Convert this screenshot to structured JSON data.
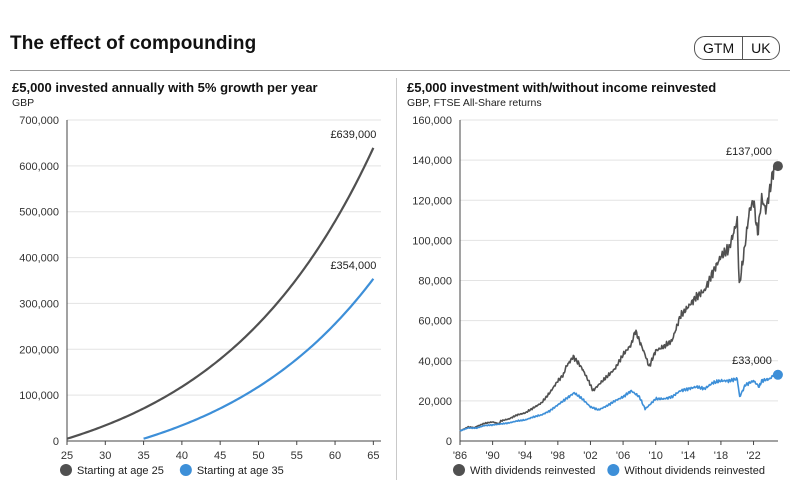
{
  "header": {
    "title": "The effect of compounding",
    "badge": [
      "GTM",
      "UK"
    ]
  },
  "colors": {
    "dark": "#505050",
    "blue": "#3d8fd8",
    "grid": "#e3e3e3",
    "axis": "#444444"
  },
  "chart_data": [
    {
      "type": "line",
      "title": "£5,000 invested annually with 5% growth per year",
      "subtitle": "GBP",
      "xlim": [
        25,
        66
      ],
      "ylim": [
        0,
        700000
      ],
      "xticks": [
        "25",
        "30",
        "35",
        "40",
        "45",
        "50",
        "55",
        "60",
        "65"
      ],
      "yticks": [
        "0",
        "100,000",
        "200,000",
        "300,000",
        "400,000",
        "500,000",
        "600,000",
        "700,000"
      ],
      "series": [
        {
          "name": "Starting at age 25",
          "color_key": "dark",
          "start_age": 25,
          "end_age": 65,
          "annual": 5000,
          "rate": 0.05,
          "final_label": "£639,000"
        },
        {
          "name": "Starting at age 35",
          "color_key": "blue",
          "start_age": 35,
          "end_age": 65,
          "annual": 5000,
          "rate": 0.05,
          "final_label": "£354,000"
        }
      ],
      "legend": [
        "Starting at age 25",
        "Starting at age 35"
      ]
    },
    {
      "type": "line",
      "title": "£5,000 investment with/without income reinvested",
      "subtitle": "GBP, FTSE All-Share returns",
      "xlim": [
        1986,
        2025
      ],
      "ylim": [
        0,
        160000
      ],
      "xtick_labels": [
        "'86",
        "'90",
        "'94",
        "'98",
        "'02",
        "'06",
        "'10",
        "'14",
        "'18",
        "'22"
      ],
      "xtick_years": [
        1986,
        1990,
        1994,
        1998,
        2002,
        2006,
        2010,
        2014,
        2018,
        2022
      ],
      "yticks": [
        "0",
        "20,000",
        "40,000",
        "60,000",
        "80,000",
        "100,000",
        "120,000",
        "140,000",
        "160,000"
      ],
      "series": [
        {
          "name": "With dividends reinvested",
          "color_key": "dark",
          "final_label": "£137,000",
          "x": [
            1986,
            1987,
            1987.8,
            1988,
            1989,
            1990,
            1990.8,
            1991,
            1992,
            1993,
            1994,
            1995,
            1996,
            1997,
            1998,
            1998.7,
            1999,
            1999.9,
            2000.5,
            2001,
            2002,
            2002.3,
            2003,
            2004,
            2005,
            2006,
            2007,
            2007.5,
            2008,
            2008.7,
            2009.2,
            2010,
            2011,
            2012,
            2013,
            2014,
            2015,
            2016,
            2017,
            2018,
            2019,
            2019.5,
            2020,
            2020.25,
            2021,
            2021.5,
            2022,
            2022.5,
            2023,
            2023.5,
            2024,
            2024.5
          ],
          "y": [
            5000,
            7000,
            6600,
            7200,
            8800,
            9500,
            8500,
            10000,
            11000,
            13000,
            14000,
            16500,
            19000,
            24000,
            30000,
            33000,
            37000,
            42000,
            39000,
            36000,
            28000,
            25000,
            28000,
            32000,
            36000,
            43000,
            48000,
            55000,
            50000,
            43000,
            37000,
            45000,
            47000,
            50000,
            62000,
            67000,
            72000,
            75000,
            84000,
            92000,
            96000,
            103000,
            110000,
            77000,
            99000,
            115000,
            120000,
            103000,
            121000,
            115000,
            125000,
            137000
          ]
        },
        {
          "name": "Without dividends reinvested",
          "color_key": "blue",
          "final_label": "£33,000",
          "x": [
            1986,
            1987,
            1988,
            1989,
            1990,
            1991,
            1992,
            1993,
            1994,
            1995,
            1996,
            1997,
            1998,
            1999,
            2000,
            2001,
            2002,
            2003,
            2004,
            2005,
            2006,
            2007,
            2008,
            2008.7,
            2009,
            2010,
            2011,
            2012,
            2013,
            2014,
            2015,
            2016,
            2017,
            2018,
            2019,
            2020,
            2020.3,
            2021,
            2022,
            2022.7,
            2023,
            2024,
            2024.5
          ],
          "y": [
            5000,
            6500,
            6400,
            7700,
            8000,
            8500,
            9000,
            10000,
            10500,
            12000,
            13000,
            15000,
            18000,
            21000,
            24000,
            21000,
            17000,
            15500,
            17500,
            20000,
            22000,
            25000,
            22000,
            16000,
            17000,
            21000,
            21000,
            22000,
            25000,
            26000,
            27000,
            26000,
            29000,
            30000,
            30000,
            31000,
            22000,
            28000,
            30000,
            27000,
            30000,
            31000,
            33000
          ]
        }
      ],
      "legend": [
        "With dividends reinvested",
        "Without dividends reinvested"
      ]
    }
  ]
}
